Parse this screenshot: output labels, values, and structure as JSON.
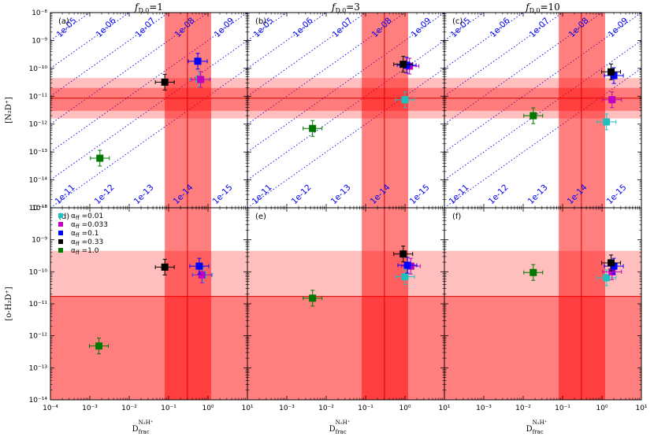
{
  "figure": {
    "column_titles": [
      {
        "symbol": "f",
        "sub": "D,0",
        "value": "=1"
      },
      {
        "symbol": "f",
        "sub": "D,0",
        "value": "=3"
      },
      {
        "symbol": "f",
        "sub": "D,0",
        "value": "=10"
      }
    ],
    "xlabel": {
      "main": "D",
      "sub": "frac",
      "sup": "N₂H⁺"
    },
    "ylabel_top": "[N₂D⁺]",
    "ylabel_bottom": "[o-H₂D⁺]",
    "legend_symbol": "α",
    "legend_sub": "ff"
  },
  "chart_data": {
    "type": "scatter",
    "xscale": "log",
    "yscale": "log",
    "xlim": [
      0.0001,
      10
    ],
    "ylim_top": [
      1e-15,
      1e-08
    ],
    "ylim_bottom": [
      1e-14,
      1e-08
    ],
    "x_tick_labels": [
      "10⁻⁴",
      "10⁻³",
      "10⁻²",
      "10⁻¹",
      "10⁰",
      "10¹"
    ],
    "panel_labels": [
      "(a)",
      "(b)",
      "(c)",
      "(d)",
      "(e)",
      "(f)"
    ],
    "diagonal_labels_upper": [
      "1e-05",
      "1e-06",
      "1e-07",
      "1e-08",
      "1e-09"
    ],
    "diagonal_labels_lower": [
      "1e-11",
      "1e-12",
      "1e-13",
      "1e-14",
      "1e-15"
    ],
    "observed": {
      "dfrac": {
        "lo": 0.08,
        "center": 0.3,
        "hi": 1.2
      },
      "n2dp": {
        "lo": 1.6e-12,
        "inner_lo": 3e-12,
        "center": 8.5e-12,
        "inner_hi": 2e-11,
        "hi": 4.5e-11
      },
      "oh2dp": {
        "upper_limit": 1.7e-11,
        "hi": 4.5e-10
      }
    },
    "series": [
      {
        "name": "0.01",
        "color": "#22bfbf"
      },
      {
        "name": "0.033",
        "color": "#bf00bf"
      },
      {
        "name": "0.1",
        "color": "#0000ff"
      },
      {
        "name": "0.33",
        "color": "#000000"
      },
      {
        "name": "1.0",
        "color": "#007700"
      }
    ],
    "panels": [
      {
        "points": [
          {
            "x": 0.6,
            "y": 4e-11
          },
          {
            "x": 0.65,
            "y": 4e-11
          },
          {
            "x": 0.55,
            "y": 1.8e-10
          },
          {
            "x": 0.08,
            "y": 3.2e-11
          },
          {
            "x": 0.0018,
            "y": 6e-14
          }
        ]
      },
      {
        "points": [
          {
            "x": 1.0,
            "y": 7.5e-12
          },
          {
            "x": 1.3,
            "y": 1.2e-10
          },
          {
            "x": 1.1,
            "y": 1.3e-10
          },
          {
            "x": 0.9,
            "y": 1.4e-10
          },
          {
            "x": 0.0045,
            "y": 7e-13
          }
        ]
      },
      {
        "points": [
          {
            "x": 1.3,
            "y": 1.2e-12
          },
          {
            "x": 1.8,
            "y": 7.5e-12
          },
          {
            "x": 2.0,
            "y": 5.5e-11
          },
          {
            "x": 1.7,
            "y": 7.5e-11
          },
          {
            "x": 0.018,
            "y": 2e-12
          }
        ]
      },
      {
        "points": [
          {
            "x": 0.75,
            "y": 8e-11
          },
          {
            "x": 0.7,
            "y": 8e-11
          },
          {
            "x": 0.6,
            "y": 1.5e-10
          },
          {
            "x": 0.08,
            "y": 1.4e-10
          },
          {
            "x": 0.0017,
            "y": 4.8e-13
          }
        ]
      },
      {
        "points": [
          {
            "x": 1.0,
            "y": 7e-11
          },
          {
            "x": 1.4,
            "y": 1.5e-10
          },
          {
            "x": 1.15,
            "y": 1.6e-10
          },
          {
            "x": 0.9,
            "y": 3.6e-10
          },
          {
            "x": 0.0045,
            "y": 1.5e-11
          }
        ]
      },
      {
        "points": [
          {
            "x": 1.3,
            "y": 6.5e-11
          },
          {
            "x": 1.8,
            "y": 1e-10
          },
          {
            "x": 2.0,
            "y": 1.5e-10
          },
          {
            "x": 1.7,
            "y": 1.9e-10
          },
          {
            "x": 0.018,
            "y": 9.5e-11
          }
        ]
      }
    ]
  }
}
